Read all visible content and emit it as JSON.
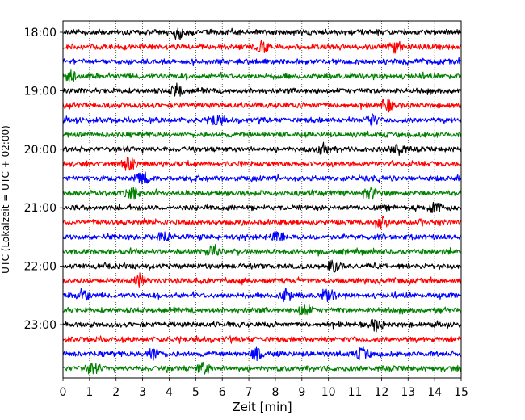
{
  "chart_data": {
    "type": "line",
    "title": "",
    "xlabel": "Zeit  [min]",
    "ylabel": "UTC (Lokalzeit = UTC + 02:00)",
    "xlim": [
      0,
      15
    ],
    "x_ticks": [
      0,
      1,
      2,
      3,
      4,
      5,
      6,
      7,
      8,
      9,
      10,
      11,
      12,
      13,
      14,
      15
    ],
    "y_tick_labels": [
      "18:00",
      "19:00",
      "20:00",
      "21:00",
      "22:00",
      "23:00"
    ],
    "grid": "vertical dotted",
    "trace_interval_min": 15,
    "color_cycle": [
      "#000000",
      "#ff0000",
      "#0000ff",
      "#008000"
    ],
    "traces": [
      {
        "start": "18:00",
        "color": "#000000",
        "events_min": [
          4.4
        ]
      },
      {
        "start": "18:15",
        "color": "#ff0000",
        "events_min": [
          7.5,
          12.5
        ]
      },
      {
        "start": "18:30",
        "color": "#0000ff",
        "events_min": []
      },
      {
        "start": "18:45",
        "color": "#008000",
        "events_min": [
          0.35
        ]
      },
      {
        "start": "19:00",
        "color": "#000000",
        "events_min": [
          4.3
        ]
      },
      {
        "start": "19:15",
        "color": "#ff0000",
        "events_min": [
          12.2
        ]
      },
      {
        "start": "19:30",
        "color": "#0000ff",
        "events_min": [
          5.8,
          11.6
        ]
      },
      {
        "start": "19:45",
        "color": "#008000",
        "events_min": []
      },
      {
        "start": "20:00",
        "color": "#000000",
        "events_min": [
          9.8,
          12.6
        ]
      },
      {
        "start": "20:15",
        "color": "#ff0000",
        "events_min": [
          2.5
        ]
      },
      {
        "start": "20:30",
        "color": "#0000ff",
        "events_min": [
          3.0
        ]
      },
      {
        "start": "20:45",
        "color": "#008000",
        "events_min": [
          2.6,
          11.6
        ]
      },
      {
        "start": "21:00",
        "color": "#000000",
        "events_min": [
          14.0
        ]
      },
      {
        "start": "21:15",
        "color": "#ff0000",
        "events_min": [
          12.0
        ]
      },
      {
        "start": "21:30",
        "color": "#0000ff",
        "events_min": [
          3.8,
          8.1
        ]
      },
      {
        "start": "21:45",
        "color": "#008000",
        "events_min": [
          5.7
        ]
      },
      {
        "start": "22:00",
        "color": "#000000",
        "events_min": [
          10.2
        ]
      },
      {
        "start": "22:15",
        "color": "#ff0000",
        "events_min": [
          2.9
        ]
      },
      {
        "start": "22:30",
        "color": "#0000ff",
        "events_min": [
          0.75,
          8.4,
          10.0
        ]
      },
      {
        "start": "22:45",
        "color": "#008000",
        "events_min": [
          9.1
        ]
      },
      {
        "start": "23:00",
        "color": "#000000",
        "events_min": [
          11.8
        ]
      },
      {
        "start": "23:15",
        "color": "#ff0000",
        "events_min": []
      },
      {
        "start": "23:30",
        "color": "#0000ff",
        "events_min": [
          3.4,
          7.3,
          11.3
        ]
      },
      {
        "start": "23:45",
        "color": "#008000",
        "events_min": [
          1.1,
          5.3
        ]
      }
    ]
  }
}
